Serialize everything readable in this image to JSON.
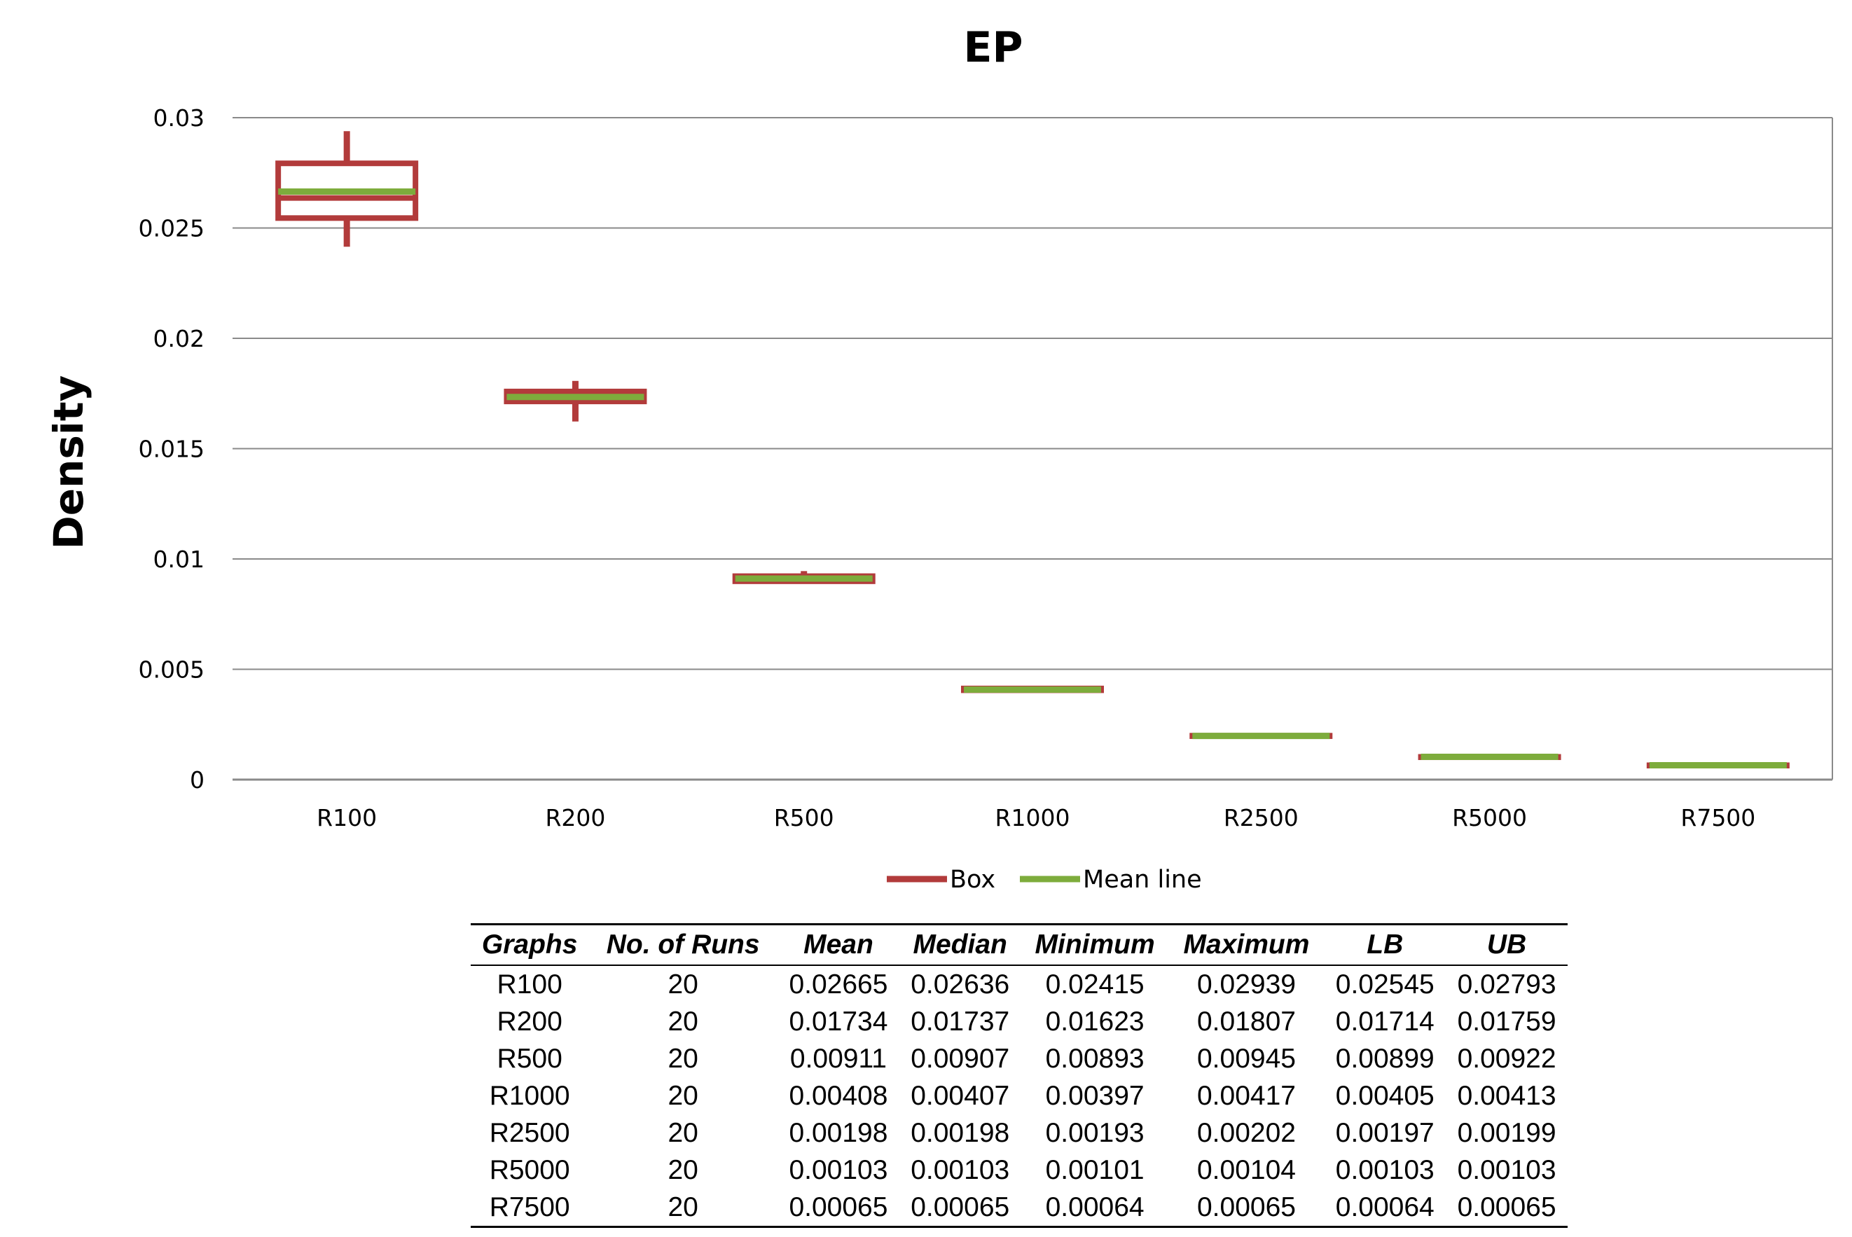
{
  "chart_data": {
    "type": "box",
    "title": "EP",
    "ylabel": "Density",
    "xlabel": "",
    "ylim": [
      0,
      0.03
    ],
    "yticks": [
      "0",
      "0.005",
      "0.01",
      "0.015",
      "0.02",
      "0.025",
      "0.03"
    ],
    "grid": true,
    "legend_position": "bottom",
    "categories": [
      "R100",
      "R200",
      "R500",
      "R1000",
      "R2500",
      "R5000",
      "R7500"
    ],
    "series": [
      {
        "name": "Box",
        "color": "#b23b3b",
        "min": [
          0.02415,
          0.01623,
          0.00893,
          0.00397,
          0.00193,
          0.00101,
          0.00064
        ],
        "lb": [
          0.02545,
          0.01714,
          0.00899,
          0.00405,
          0.00197,
          0.00103,
          0.00064
        ],
        "median": [
          0.02636,
          0.01737,
          0.00907,
          0.00407,
          0.00198,
          0.00103,
          0.00065
        ],
        "ub": [
          0.02793,
          0.01759,
          0.00922,
          0.00413,
          0.00199,
          0.00103,
          0.00065
        ],
        "max": [
          0.02939,
          0.01807,
          0.00945,
          0.00417,
          0.00202,
          0.00104,
          0.00065
        ]
      },
      {
        "name": "Mean line",
        "color": "#7dac3c",
        "values": [
          0.02665,
          0.01734,
          0.00911,
          0.00408,
          0.00198,
          0.00103,
          0.00065
        ]
      }
    ]
  },
  "table": {
    "headers": [
      "Graphs",
      "No. of Runs",
      "Mean",
      "Median",
      "Minimum",
      "Maximum",
      "LB",
      "UB"
    ],
    "rows": [
      [
        "R100",
        "20",
        "0.02665",
        "0.02636",
        "0.02415",
        "0.02939",
        "0.02545",
        "0.02793"
      ],
      [
        "R200",
        "20",
        "0.01734",
        "0.01737",
        "0.01623",
        "0.01807",
        "0.01714",
        "0.01759"
      ],
      [
        "R500",
        "20",
        "0.00911",
        "0.00907",
        "0.00893",
        "0.00945",
        "0.00899",
        "0.00922"
      ],
      [
        "R1000",
        "20",
        "0.00408",
        "0.00407",
        "0.00397",
        "0.00417",
        "0.00405",
        "0.00413"
      ],
      [
        "R2500",
        "20",
        "0.00198",
        "0.00198",
        "0.00193",
        "0.00202",
        "0.00197",
        "0.00199"
      ],
      [
        "R5000",
        "20",
        "0.00103",
        "0.00103",
        "0.00101",
        "0.00104",
        "0.00103",
        "0.00103"
      ],
      [
        "R7500",
        "20",
        "0.00065",
        "0.00065",
        "0.00064",
        "0.00065",
        "0.00064",
        "0.00065"
      ]
    ]
  }
}
